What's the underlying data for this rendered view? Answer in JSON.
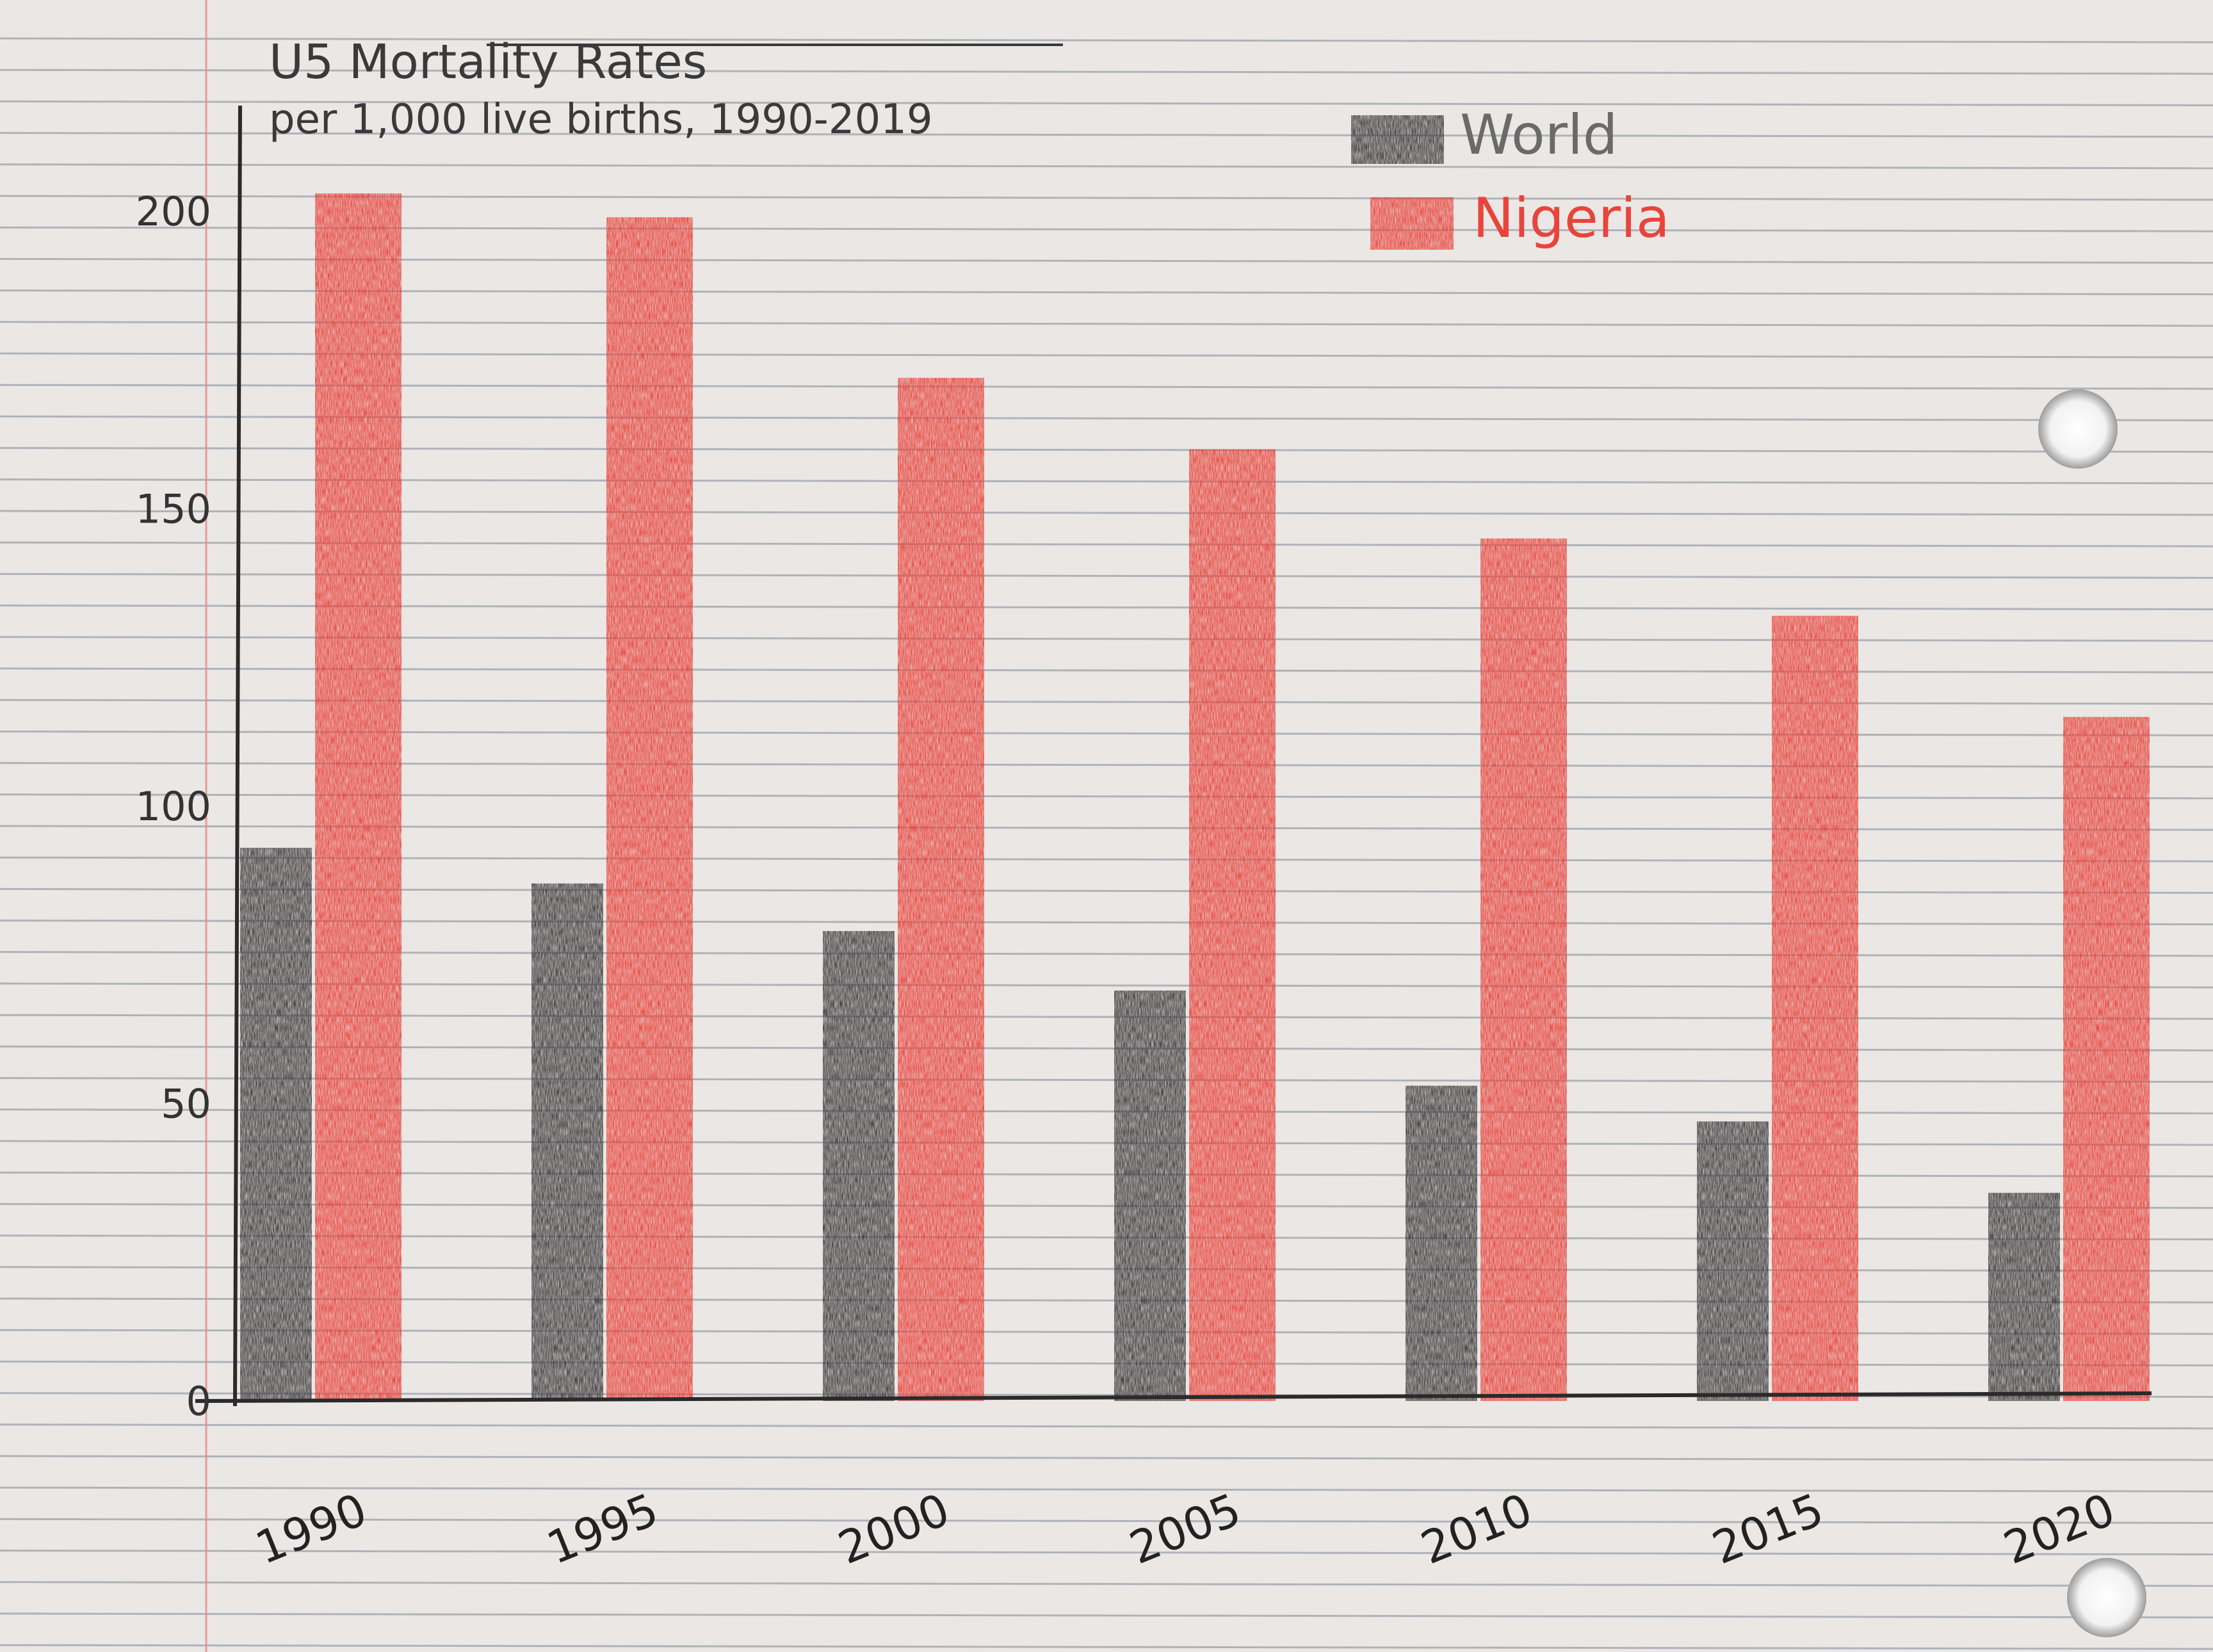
{
  "chart_data": {
    "type": "bar",
    "title": "U5 Mortality Rates",
    "subtitle": "per 1,000 live births, 1990-2019",
    "xlabel": "",
    "ylabel": "",
    "categories": [
      "1990",
      "1995",
      "2000",
      "2005",
      "2010",
      "2015",
      "2020"
    ],
    "series": [
      {
        "name": "World",
        "values": [
          93,
          87,
          79,
          69,
          53,
          47,
          35
        ]
      },
      {
        "name": "Nigeria",
        "values": [
          203,
          199,
          172,
          160,
          145,
          132,
          115
        ]
      }
    ],
    "ylim": [
      0,
      200
    ],
    "yticks": [
      "0",
      "50",
      "100",
      "150",
      "200"
    ],
    "legend_position": "top-right",
    "grid": false,
    "colors": {
      "World": "#3e3b3d",
      "Nigeria": "#e8443c",
      "axis": "#2a2a2a",
      "paper": "#ebe7e4",
      "rule": "#7d8a99",
      "margin": "#e58a8a"
    }
  }
}
